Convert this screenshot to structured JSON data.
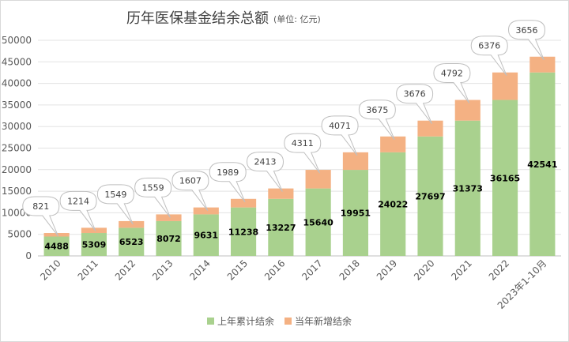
{
  "chart_data": {
    "type": "bar",
    "stacked": true,
    "title": "历年医保基金结余总额",
    "subtitle": "(单位: 亿元)",
    "categories": [
      "2010",
      "2011",
      "2012",
      "2013",
      "2014",
      "2015",
      "2016",
      "2017",
      "2018",
      "2019",
      "2020",
      "2021",
      "2022",
      "2023年1-10月"
    ],
    "series": [
      {
        "name": "上年累计结余",
        "color": "#a9d18e",
        "values": [
          4488,
          5309,
          6523,
          8072,
          9631,
          11238,
          13227,
          15640,
          19951,
          24022,
          27697,
          31373,
          36165,
          42541
        ]
      },
      {
        "name": "当年新增结余",
        "color": "#f4b183",
        "values": [
          821,
          1214,
          1549,
          1559,
          1607,
          1989,
          2413,
          4311,
          4071,
          3675,
          3676,
          4792,
          6376,
          3656
        ]
      }
    ],
    "y_ticks": [
      "0",
      "5000",
      "10000",
      "15000",
      "20000",
      "25000",
      "30000",
      "35000",
      "40000",
      "45000",
      "50000"
    ],
    "ylim": [
      0,
      50000
    ],
    "grid": true,
    "legend_position": "bottom"
  }
}
